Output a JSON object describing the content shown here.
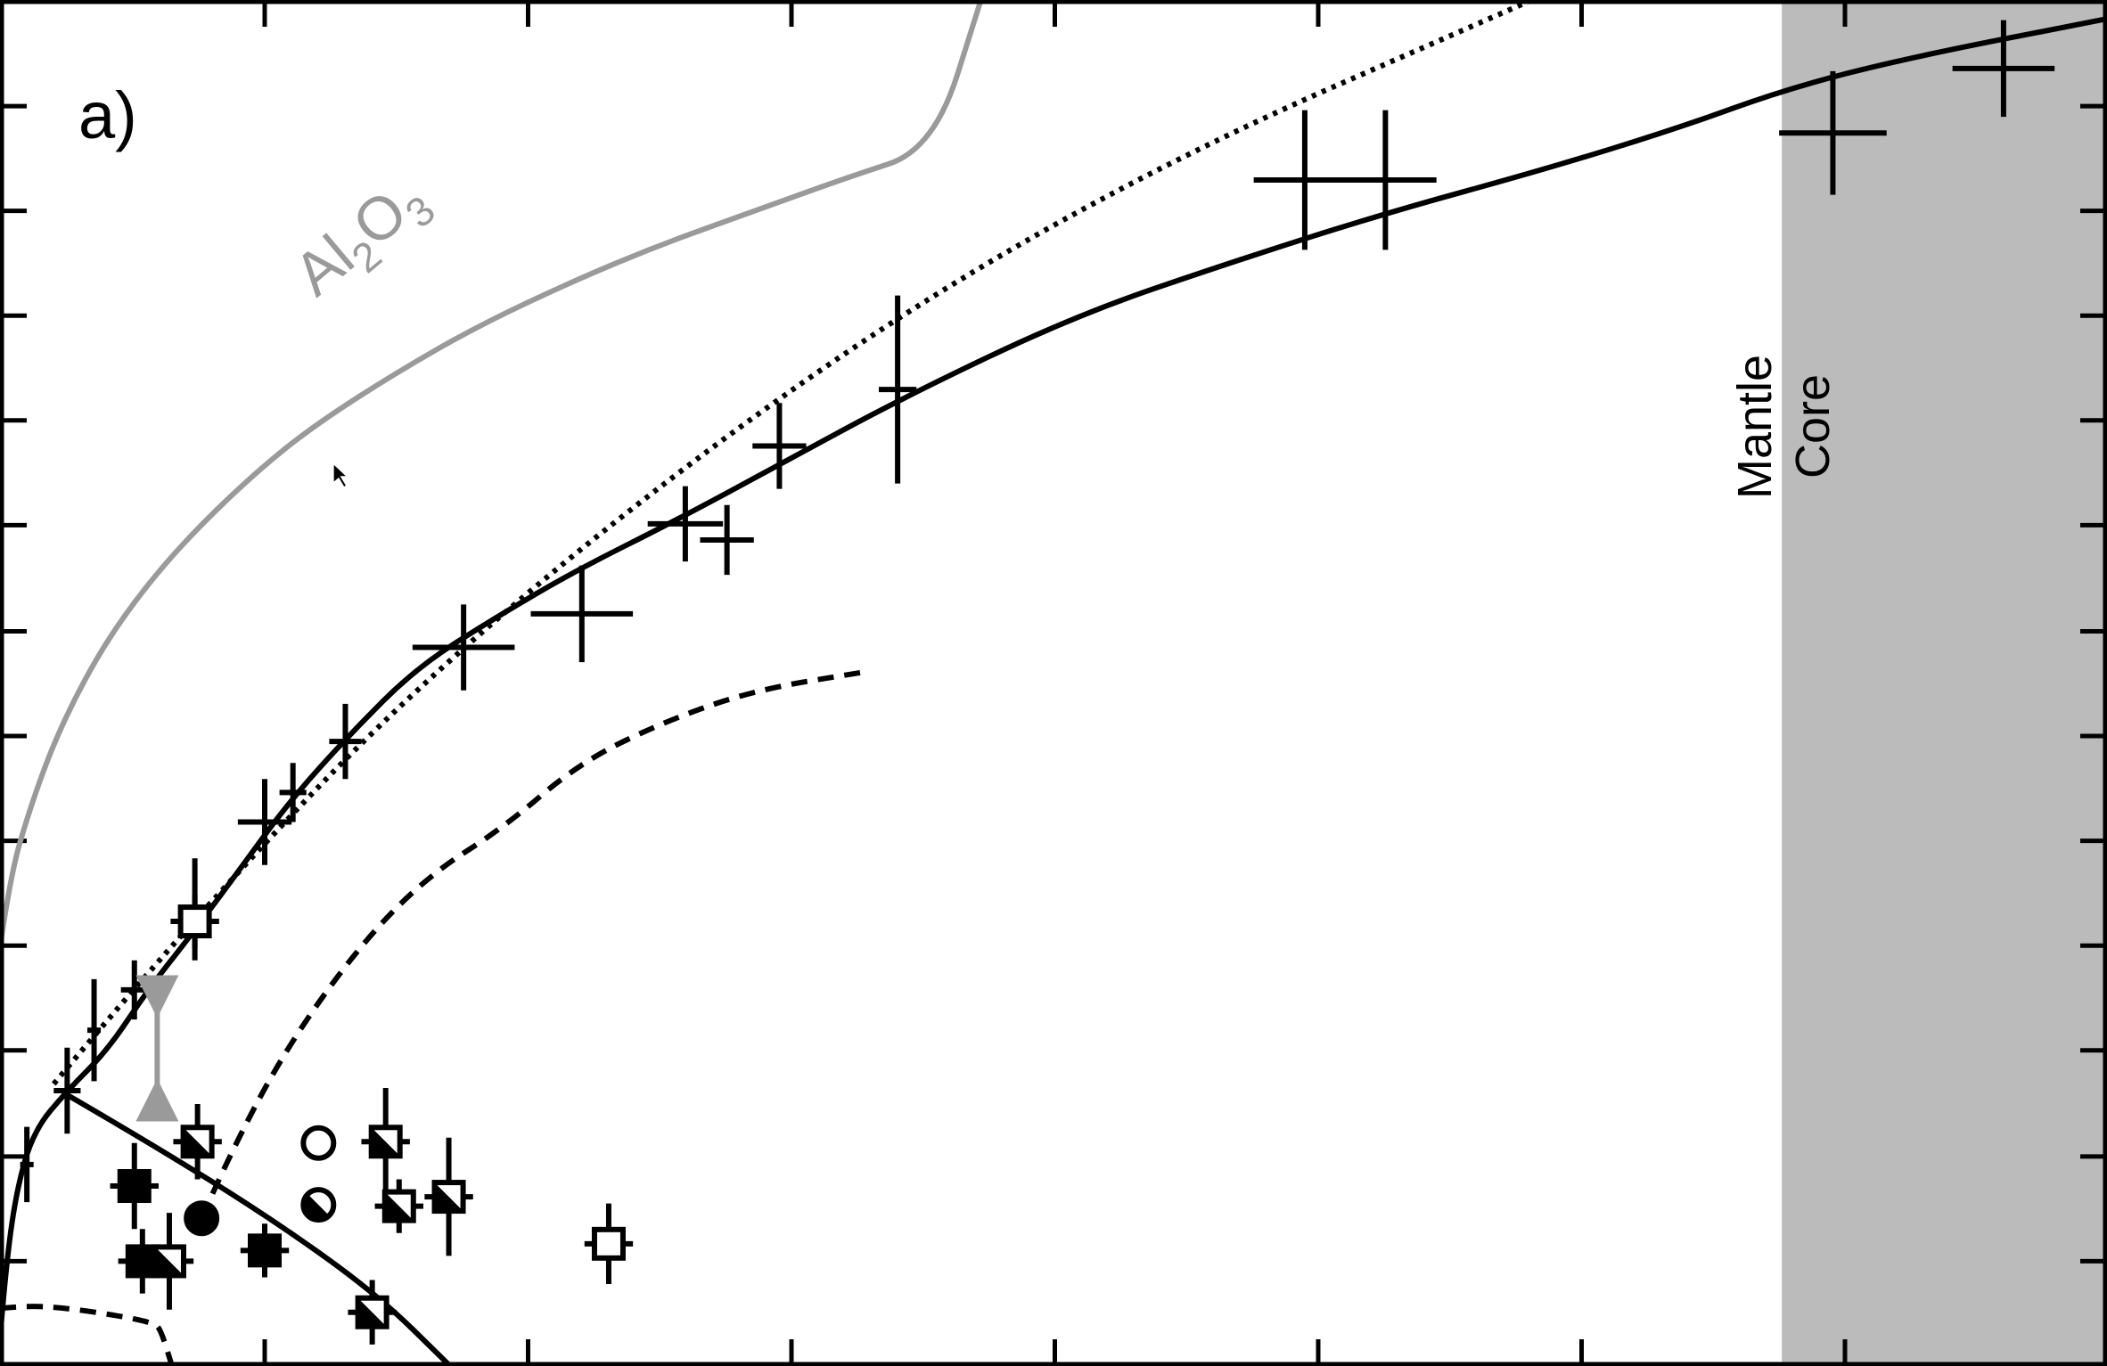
{
  "chart_data": {
    "type": "scatter",
    "panel_label": "a)",
    "xlim": [
      0,
      1568
    ],
    "ylim": [
      0,
      1017
    ],
    "x_ticks": [
      197,
      393,
      589,
      785,
      981,
      1177,
      1373
    ],
    "y_ticks": [
      78,
      156,
      235,
      313,
      391,
      469,
      547,
      626,
      704,
      782,
      860,
      938
    ],
    "shaded_region": {
      "x_from": 1326,
      "x_to": 1568,
      "color": "#bbbbbb"
    },
    "region_labels": {
      "left": "Mantle",
      "right": "Core"
    },
    "curve_label": {
      "base": "Al",
      "sub1": "2",
      "mid": "O",
      "sub2": "3"
    },
    "curves": [
      {
        "name": "",
        "style": "solid",
        "color": "#9a9a9a",
        "points": [
          [
            0,
            312
          ],
          [
            8,
            366
          ],
          [
            21,
            411
          ],
          [
            38,
            459
          ],
          [
            59,
            504
          ],
          [
            84,
            547
          ],
          [
            117,
            591
          ],
          [
            154,
            631
          ],
          [
            198,
            672
          ],
          [
            238,
            703
          ],
          [
            294,
            739
          ],
          [
            355,
            774
          ],
          [
            427,
            808
          ],
          [
            492,
            835
          ],
          [
            559,
            859
          ],
          [
            628,
            884
          ],
          [
            695,
            906
          ],
          [
            730,
            1017
          ]
        ]
      },
      {
        "name": "",
        "style": "solid",
        "color": "#000000",
        "points": [
          [
            0,
            20
          ],
          [
            4,
            70
          ],
          [
            12,
            130
          ],
          [
            25,
            175
          ],
          [
            50,
            205
          ],
          [
            80,
            235
          ],
          [
            110,
            280
          ],
          [
            140,
            318
          ],
          [
            175,
            365
          ],
          [
            215,
            420
          ],
          [
            260,
            470
          ],
          [
            310,
            520
          ],
          [
            370,
            558
          ],
          [
            430,
            593
          ],
          [
            500,
            628
          ],
          [
            580,
            671
          ],
          [
            670,
            720
          ],
          [
            800,
            782
          ],
          [
            920,
            823
          ],
          [
            1030,
            858
          ],
          [
            1150,
            891
          ],
          [
            1250,
            922
          ],
          [
            1330,
            951
          ],
          [
            1420,
            974
          ],
          [
            1568,
            1003
          ]
        ]
      },
      {
        "name": "",
        "style": "dotted",
        "color": "#000000",
        "points": [
          [
            40,
            210
          ],
          [
            140,
            330
          ],
          [
            330,
            528
          ],
          [
            600,
            740
          ],
          [
            850,
            890
          ],
          [
            1140,
            1017
          ]
        ]
      },
      {
        "name": "",
        "style": "dashed",
        "color": "#000000",
        "points": [
          [
            150,
            110
          ],
          [
            172,
            160
          ],
          [
            215,
            240
          ],
          [
            270,
            316
          ],
          [
            320,
            366
          ],
          [
            375,
            401
          ],
          [
            430,
            448
          ],
          [
            490,
            478
          ],
          [
            560,
            503
          ],
          [
            645,
            517
          ]
        ]
      },
      {
        "name": "",
        "style": "dashed",
        "color": "#000000",
        "points": [
          [
            0,
            43
          ],
          [
            22,
            45
          ],
          [
            50,
            43
          ],
          [
            85,
            38
          ],
          [
            115,
            32
          ],
          [
            120,
            26
          ],
          [
            128,
            0
          ]
        ]
      },
      {
        "name": "",
        "style": "solid",
        "color": "#000000",
        "points": [
          [
            48,
            203
          ],
          [
            110,
            167
          ],
          [
            200,
            111
          ],
          [
            280,
            54
          ],
          [
            335,
            0
          ]
        ]
      }
    ],
    "error_bar_points": [
      {
        "x": 20,
        "y": 150,
        "xerr": 5,
        "yerr": 28
      },
      {
        "x": 50,
        "y": 205,
        "xerr": 10,
        "yerr": 32
      },
      {
        "x": 70,
        "y": 250,
        "xerr": 5,
        "yerr": 38
      },
      {
        "x": 100,
        "y": 280,
        "xerr": 10,
        "yerr": 22
      },
      {
        "x": 145,
        "y": 340,
        "xerr": 10,
        "yerr": 38
      },
      {
        "x": 197,
        "y": 405,
        "xerr": 20,
        "yerr": 32
      },
      {
        "x": 218,
        "y": 427,
        "xerr": 10,
        "yerr": 22
      },
      {
        "x": 257,
        "y": 465,
        "xerr": 12,
        "yerr": 28
      },
      {
        "x": 345,
        "y": 535,
        "xerr": 38,
        "yerr": 32
      },
      {
        "x": 433,
        "y": 560,
        "xerr": 38,
        "yerr": 36
      },
      {
        "x": 510,
        "y": 627,
        "xerr": 28,
        "yerr": 28
      },
      {
        "x": 541,
        "y": 615,
        "xerr": 20,
        "yerr": 26
      },
      {
        "x": 580,
        "y": 685,
        "xerr": 20,
        "yerr": 32
      },
      {
        "x": 668,
        "y": 727,
        "xerr": 14,
        "yerr": 70
      },
      {
        "x": 971,
        "y": 883,
        "xerr": 38,
        "yerr": 52
      },
      {
        "x": 1031,
        "y": 883,
        "xerr": 38,
        "yerr": 52
      },
      {
        "x": 1364,
        "y": 918,
        "xerr": 40,
        "yerr": 46
      },
      {
        "x": 1491,
        "y": 966,
        "xerr": 38,
        "yerr": 36
      }
    ],
    "square_points": [
      {
        "x": 100,
        "y": 134,
        "fill": "solid",
        "yerr": 32
      },
      {
        "x": 106,
        "y": 78,
        "fill": "solid",
        "yerr": 24
      },
      {
        "x": 197,
        "y": 86,
        "fill": "solid",
        "yerr": 20
      },
      {
        "x": 126,
        "y": 78,
        "fill": "half",
        "yerr": 36
      },
      {
        "x": 147,
        "y": 167,
        "fill": "half",
        "yerr": 28
      },
      {
        "x": 287,
        "y": 167,
        "fill": "half",
        "yerr": 40
      },
      {
        "x": 297,
        "y": 119,
        "fill": "half",
        "yerr": 20
      },
      {
        "x": 334,
        "y": 126,
        "fill": "half",
        "yerr": 44
      },
      {
        "x": 277,
        "y": 40,
        "fill": "half",
        "yerr": 24
      },
      {
        "x": 145,
        "y": 331,
        "fill": "open",
        "yerr": 20
      },
      {
        "x": 453,
        "y": 91,
        "fill": "open",
        "yerr": 30
      }
    ],
    "circle_points": [
      {
        "x": 237,
        "y": 166,
        "fill": "open"
      },
      {
        "x": 237,
        "y": 120,
        "fill": "half"
      },
      {
        "x": 150,
        "y": 110,
        "fill": "solid"
      }
    ],
    "triangle_points": [
      {
        "x": 117,
        "y": 275,
        "direction": "down",
        "color": "#9a9a9a"
      },
      {
        "x": 117,
        "y": 198,
        "direction": "up",
        "color": "#9a9a9a"
      }
    ],
    "cursor_point": {
      "x": 248,
      "y": 672
    }
  }
}
